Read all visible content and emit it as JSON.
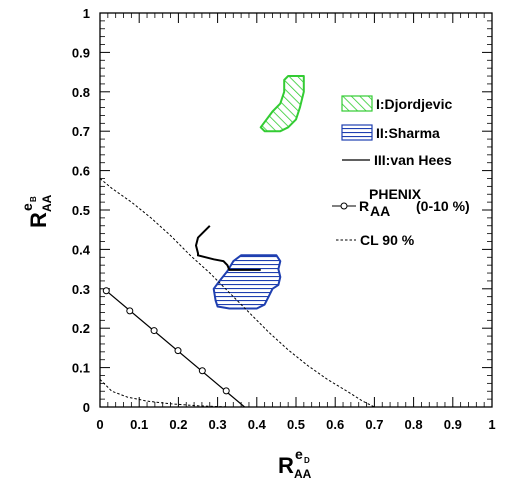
{
  "chart_data": {
    "type": "scatter",
    "xlim": [
      0,
      1
    ],
    "ylim": [
      0,
      1
    ],
    "xticks": [
      "0",
      "0.1",
      "0.2",
      "0.3",
      "0.4",
      "0.5",
      "0.6",
      "0.7",
      "0.8",
      "0.9",
      "1"
    ],
    "yticks": [
      "0",
      "0.1",
      "0.2",
      "0.3",
      "0.4",
      "0.5",
      "0.6",
      "0.7",
      "0.8",
      "0.9",
      "1"
    ],
    "xlabel": {
      "main": "R",
      "sub": "AA",
      "sup": "e",
      "supsub": "D"
    },
    "ylabel": {
      "main": "R",
      "sub": "AA",
      "sup": "e",
      "supsub": "B"
    },
    "grid": false,
    "legend_position": "right",
    "legend": {
      "djordjevic": "I:Djordjevic",
      "sharma": "II:Sharma",
      "vanhees": "III:van Hees",
      "phenix_main": "R",
      "phenix_sup": "PHENIX",
      "phenix_sub": "AA",
      "phenix_tail": "(0-10 %)",
      "cl90": "CL 90 %"
    },
    "colors": {
      "djordjevic": "#33cc33",
      "sharma": "#1f3fb0",
      "vanhees": "#000000",
      "phenix": "#000000",
      "cl90": "#000000"
    },
    "series": [
      {
        "key": "djordjevic",
        "kind": "hatched-region",
        "polygon": [
          [
            0.48,
            0.84
          ],
          [
            0.52,
            0.84
          ],
          [
            0.52,
            0.8
          ],
          [
            0.51,
            0.76
          ],
          [
            0.5,
            0.73
          ],
          [
            0.48,
            0.71
          ],
          [
            0.46,
            0.7
          ],
          [
            0.42,
            0.7
          ],
          [
            0.41,
            0.71
          ],
          [
            0.44,
            0.75
          ],
          [
            0.46,
            0.77
          ],
          [
            0.47,
            0.8
          ],
          [
            0.47,
            0.83
          ]
        ]
      },
      {
        "key": "sharma",
        "kind": "hatched-region",
        "polygon": [
          [
            0.34,
            0.37
          ],
          [
            0.36,
            0.385
          ],
          [
            0.4,
            0.385
          ],
          [
            0.45,
            0.385
          ],
          [
            0.46,
            0.37
          ],
          [
            0.455,
            0.35
          ],
          [
            0.46,
            0.33
          ],
          [
            0.455,
            0.31
          ],
          [
            0.44,
            0.3
          ],
          [
            0.43,
            0.28
          ],
          [
            0.42,
            0.26
          ],
          [
            0.4,
            0.25
          ],
          [
            0.37,
            0.25
          ],
          [
            0.33,
            0.25
          ],
          [
            0.3,
            0.255
          ],
          [
            0.295,
            0.27
          ],
          [
            0.29,
            0.3
          ],
          [
            0.305,
            0.32
          ],
          [
            0.325,
            0.345
          ]
        ]
      },
      {
        "key": "vanhees",
        "kind": "line",
        "points": [
          [
            0.28,
            0.46
          ],
          [
            0.265,
            0.445
          ],
          [
            0.25,
            0.43
          ],
          [
            0.245,
            0.41
          ],
          [
            0.25,
            0.39
          ],
          [
            0.25,
            0.385
          ],
          [
            0.27,
            0.38
          ],
          [
            0.29,
            0.375
          ],
          [
            0.315,
            0.37
          ],
          [
            0.325,
            0.36
          ],
          [
            0.33,
            0.348
          ],
          [
            0.345,
            0.348
          ],
          [
            0.39,
            0.348
          ],
          [
            0.41,
            0.348
          ]
        ]
      },
      {
        "key": "phenix",
        "kind": "line-markers",
        "points": [
          [
            0.016,
            0.295
          ],
          [
            0.076,
            0.244
          ],
          [
            0.138,
            0.194
          ],
          [
            0.199,
            0.143
          ],
          [
            0.261,
            0.092
          ],
          [
            0.322,
            0.041
          ]
        ],
        "line": [
          [
            0.016,
            0.295
          ],
          [
            0.369,
            0.0
          ]
        ]
      },
      {
        "key": "cl90_outer",
        "kind": "dashed-line",
        "points": [
          [
            0.0,
            0.58
          ],
          [
            0.03,
            0.555
          ],
          [
            0.08,
            0.52
          ],
          [
            0.13,
            0.48
          ],
          [
            0.18,
            0.435
          ],
          [
            0.23,
            0.385
          ],
          [
            0.28,
            0.34
          ],
          [
            0.33,
            0.29
          ],
          [
            0.38,
            0.24
          ],
          [
            0.43,
            0.19
          ],
          [
            0.48,
            0.145
          ],
          [
            0.53,
            0.105
          ],
          [
            0.58,
            0.07
          ],
          [
            0.63,
            0.04
          ],
          [
            0.67,
            0.015
          ],
          [
            0.7,
            0.0
          ]
        ]
      },
      {
        "key": "cl90_inner",
        "kind": "dashed-line",
        "points": [
          [
            0.0,
            0.07
          ],
          [
            0.03,
            0.04
          ],
          [
            0.07,
            0.025
          ],
          [
            0.12,
            0.015
          ],
          [
            0.18,
            0.008
          ],
          [
            0.25,
            0.003
          ],
          [
            0.33,
            0.0
          ]
        ]
      }
    ]
  }
}
